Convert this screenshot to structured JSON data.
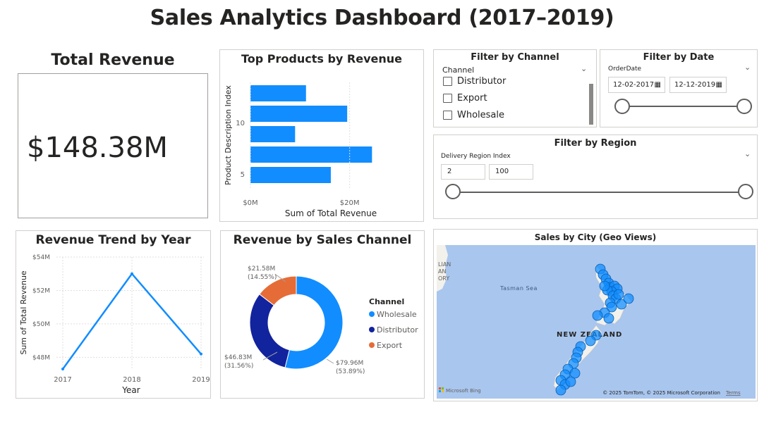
{
  "title": "Sales Analytics Dashboard (2017–2019)",
  "kpi": {
    "title": "Total Revenue",
    "value": "$148.38M"
  },
  "top_products": {
    "title": "Top Products by Revenue",
    "color": "#118DFF",
    "chart_data": {
      "type": "bar",
      "orientation": "horizontal",
      "xlabel": "Sum of Total Revenue",
      "ylabel": "Product Description Index",
      "x_ticks": [
        "$0M",
        "$20M"
      ],
      "y_ticks": [
        "10",
        "5"
      ],
      "xlim": [
        0,
        30
      ],
      "bars": [
        11.2,
        19.5,
        9.0,
        24.5,
        16.2
      ]
    }
  },
  "filter_channel": {
    "title": "Filter by Channel",
    "field": "Channel",
    "options": [
      "Distributor",
      "Export",
      "Wholesale"
    ]
  },
  "filter_date": {
    "title": "Filter by Date",
    "field": "OrderDate",
    "start": "12-02-2017",
    "end": "12-12-2019"
  },
  "filter_region": {
    "title": "Filter by Region",
    "field": "Delivery Region Index",
    "min": "2",
    "max": "100"
  },
  "trend": {
    "title": "Revenue Trend by Year",
    "color": "#118DFF",
    "chart_data": {
      "type": "line",
      "x": [
        "2017",
        "2018",
        "2019"
      ],
      "values": [
        47.3,
        53.0,
        48.2
      ],
      "xlabel": "Year",
      "ylabel": "Sum of Total Revenue",
      "ylim": [
        47.3,
        54
      ],
      "y_ticks": [
        48,
        50,
        52,
        54
      ],
      "y_tick_labels": [
        "$48M",
        "$50M",
        "$52M",
        "$54M"
      ]
    }
  },
  "channel_donut": {
    "title": "Revenue by Sales Channel",
    "legend_title": "Channel",
    "chart_data": {
      "type": "pie",
      "donut": true,
      "slices": [
        {
          "name": "Wholesale",
          "value": 79.96,
          "label": "$79.96M",
          "pct": "(53.89%)",
          "color": "#118DFF"
        },
        {
          "name": "Distributor",
          "value": 46.83,
          "label": "$46.83M",
          "pct": "(31.56%)",
          "color": "#12239E"
        },
        {
          "name": "Export",
          "value": 21.58,
          "label": "$21.58M",
          "pct": "(14.55%)",
          "color": "#E66C37"
        }
      ]
    }
  },
  "map": {
    "title": "Sales by City (Geo Views)",
    "sea_label": "Tasman Sea",
    "country_label": "NEW ZEALAND",
    "left_labels": [
      "LIAN",
      "AN",
      "ORY"
    ],
    "provider": "Microsoft Bing",
    "attribution": "© 2025 TomTom, © 2025 Microsoft Corporation",
    "terms": "Terms",
    "water_color": "#A9C6EE",
    "land_color": "#F2F1EC",
    "bubble_color": "#118DFF"
  }
}
